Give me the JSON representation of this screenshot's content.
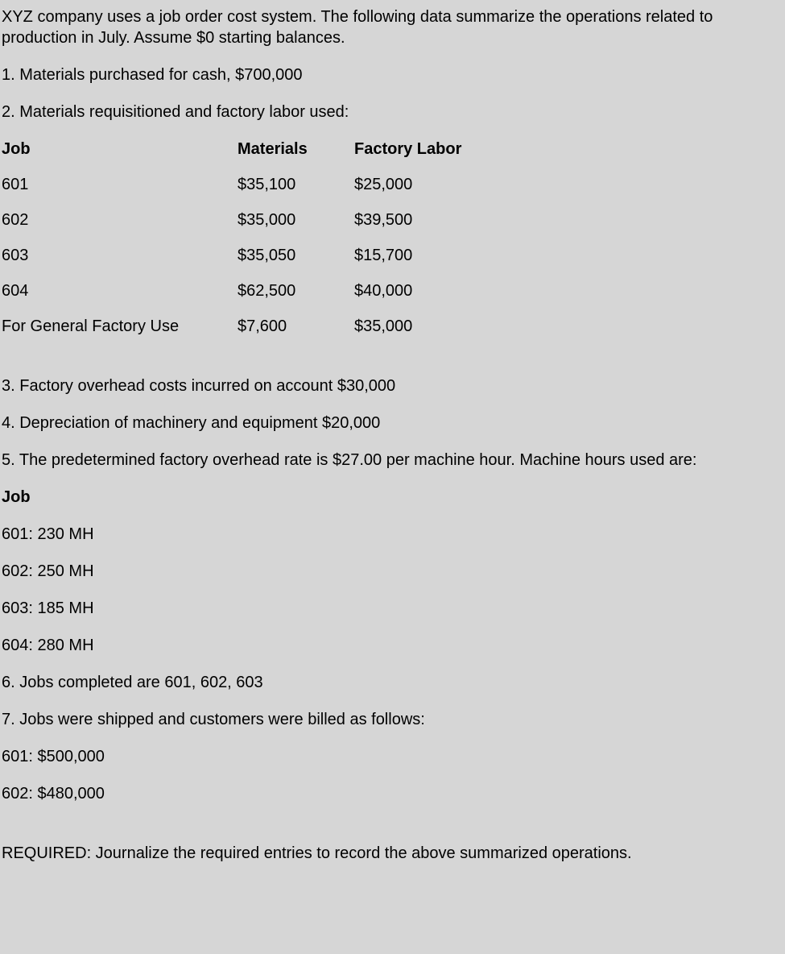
{
  "intro": "XYZ company uses a job order cost system.  The following data summarize the operations related to production in July.  Assume $0 starting balances.",
  "item1": "1. Materials purchased for cash, $700,000",
  "item2": "2. Materials requisitioned and factory labor used:",
  "table": {
    "headers": {
      "job": "Job",
      "materials": "Materials",
      "labor": "Factory Labor"
    },
    "rows": [
      {
        "job": "601",
        "materials": "$35,100",
        "labor": "$25,000"
      },
      {
        "job": "602",
        "materials": "$35,000",
        "labor": "$39,500"
      },
      {
        "job": "603",
        "materials": "$35,050",
        "labor": "$15,700"
      },
      {
        "job": "604",
        "materials": "$62,500",
        "labor": "$40,000"
      },
      {
        "job": "For General Factory Use",
        "materials": "$7,600",
        "labor": "$35,000"
      }
    ]
  },
  "item3": "3. Factory overhead costs incurred on account $30,000",
  "item4": "4. Depreciation of machinery and equipment $20,000",
  "item5": "5. The predetermined factory overhead rate is $27.00 per machine hour.  Machine hours used are:",
  "jobHeader": "Job",
  "mhRows": [
    "601: 230 MH",
    "602: 250 MH",
    "603: 185 MH",
    "604: 280 MH"
  ],
  "item6": "6. Jobs completed are 601, 602, 603",
  "item7": "7. Jobs were shipped and customers were billed as follows:",
  "shipRows": [
    "601: $500,000",
    "602: $480,000"
  ],
  "required": "REQUIRED: Journalize the required entries to record the above summarized operations."
}
